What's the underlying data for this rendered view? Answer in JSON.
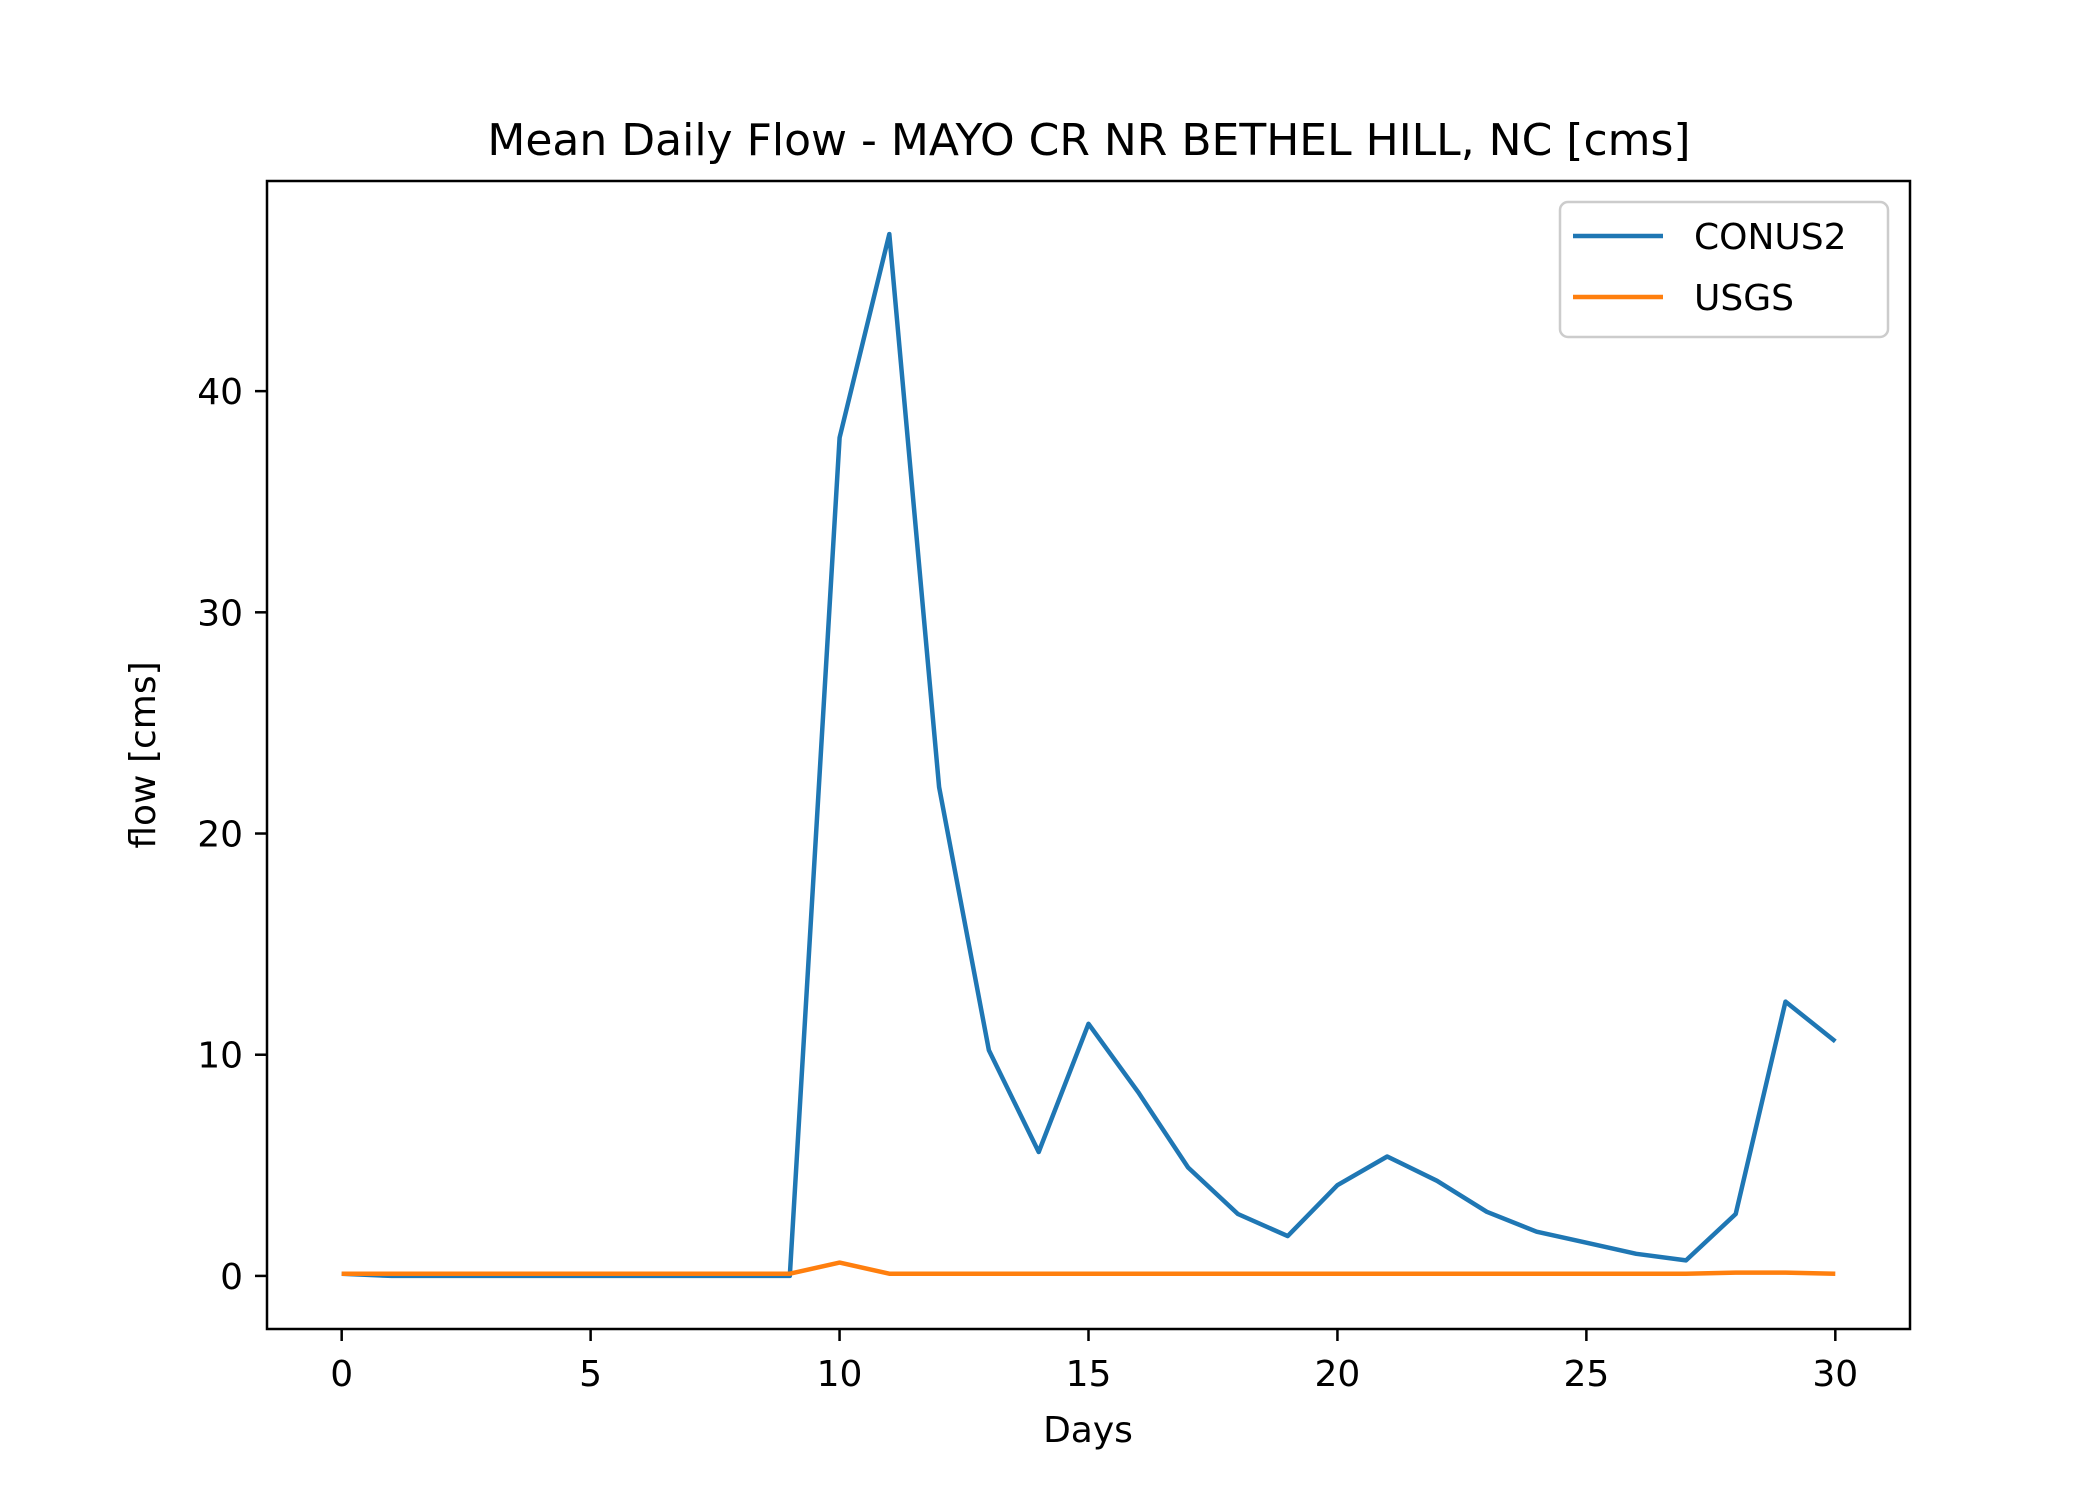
{
  "chart_data": {
    "type": "line",
    "title": "Mean Daily Flow - MAYO CR NR BETHEL HILL, NC [cms]",
    "xlabel": "Days",
    "ylabel": "flow [cms]",
    "xlim": [
      -1.5,
      31.5
    ],
    "ylim": [
      -2.4,
      49.5
    ],
    "xticks": [
      0,
      5,
      10,
      15,
      20,
      25,
      30
    ],
    "yticks": [
      0,
      10,
      20,
      30,
      40
    ],
    "grid": false,
    "legend_position": "top-right",
    "x": [
      0,
      1,
      2,
      3,
      4,
      5,
      6,
      7,
      8,
      9,
      10,
      11,
      12,
      13,
      14,
      15,
      16,
      17,
      18,
      19,
      20,
      21,
      22,
      23,
      24,
      25,
      26,
      27,
      28,
      29,
      30
    ],
    "series": [
      {
        "name": "CONUS2",
        "color": "#1f77b4",
        "values": [
          0.1,
          0.0,
          0.0,
          0.0,
          0.0,
          0.0,
          0.0,
          0.0,
          0.0,
          0.0,
          37.9,
          47.1,
          22.1,
          10.2,
          5.6,
          11.4,
          8.3,
          4.9,
          2.8,
          1.8,
          4.1,
          5.4,
          4.3,
          2.9,
          2.0,
          1.5,
          1.0,
          0.7,
          2.8,
          12.4,
          10.6
        ]
      },
      {
        "name": "USGS",
        "color": "#ff7f0e",
        "values": [
          0.1,
          0.1,
          0.1,
          0.1,
          0.1,
          0.1,
          0.1,
          0.1,
          0.1,
          0.1,
          0.6,
          0.1,
          0.1,
          0.1,
          0.1,
          0.1,
          0.1,
          0.1,
          0.1,
          0.1,
          0.1,
          0.1,
          0.1,
          0.1,
          0.1,
          0.1,
          0.1,
          0.1,
          0.15,
          0.15,
          0.1
        ]
      }
    ]
  }
}
